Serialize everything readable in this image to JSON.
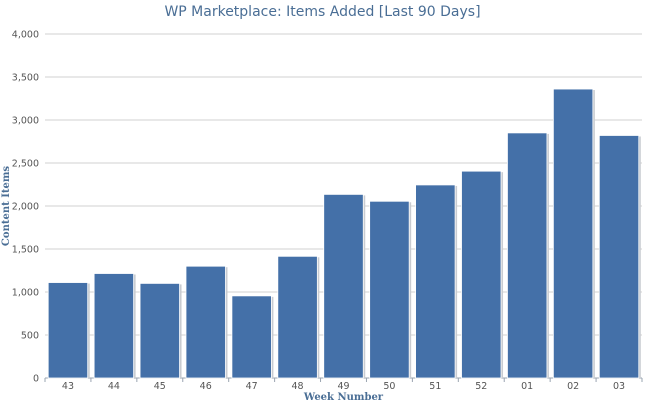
{
  "chart_data": {
    "type": "bar",
    "title": "WP Marketplace: Items Added [Last 90 Days]",
    "xlabel": "Week Number",
    "ylabel": "Content Items",
    "categories": [
      "43",
      "44",
      "45",
      "46",
      "47",
      "48",
      "49",
      "50",
      "51",
      "52",
      "01",
      "02",
      "03"
    ],
    "values": [
      1110,
      1215,
      1100,
      1300,
      955,
      1415,
      2135,
      2055,
      2245,
      2405,
      2850,
      3360,
      2820
    ],
    "ylim": [
      0,
      4000
    ],
    "yticks": [
      0,
      500,
      1000,
      1500,
      2000,
      2500,
      3000,
      3500,
      4000
    ],
    "ytick_labels": [
      "0",
      "500",
      "1,000",
      "1,500",
      "2,000",
      "2,500",
      "3,000",
      "3,500",
      "4,000"
    ],
    "grid": true,
    "bar_color": "#4470a8",
    "grid_color": "#d0d0d0"
  }
}
